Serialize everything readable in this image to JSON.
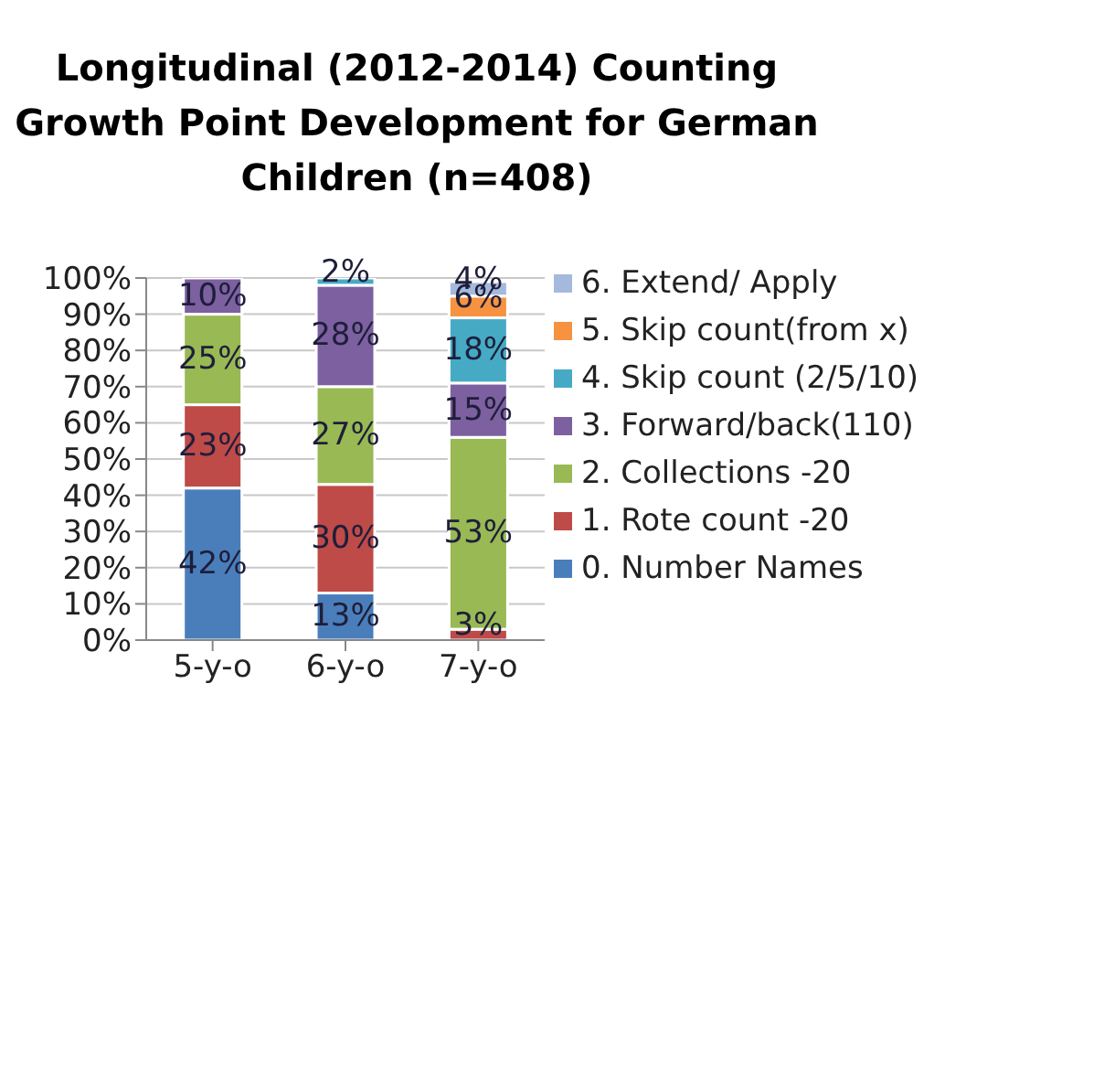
{
  "chart_data": {
    "type": "bar",
    "title": "Longitudinal (2012-2014) Counting Growth Point Development for German Children (n=408)",
    "categories": [
      "5-y-o",
      "6-y-o",
      "7-y-o"
    ],
    "stacked": true,
    "ylim": [
      0,
      100
    ],
    "yticks": [
      {
        "value": 0,
        "label": "0%"
      },
      {
        "value": 10,
        "label": "10%"
      },
      {
        "value": 20,
        "label": "20%"
      },
      {
        "value": 30,
        "label": "30%"
      },
      {
        "value": 40,
        "label": "40%"
      },
      {
        "value": 50,
        "label": "50%"
      },
      {
        "value": 60,
        "label": "60%"
      },
      {
        "value": 70,
        "label": "70%"
      },
      {
        "value": 80,
        "label": "80%"
      },
      {
        "value": 90,
        "label": "90%"
      },
      {
        "value": 100,
        "label": "100%"
      }
    ],
    "grid": "y",
    "legend": "right",
    "series": [
      {
        "name": "0. Number Names",
        "color": "#4a7ebb",
        "values": [
          42,
          13,
          null
        ],
        "value_labels": [
          "42%",
          "13%",
          null
        ]
      },
      {
        "name": "1. Rote count -20",
        "color": "#be4b48",
        "values": [
          23,
          30,
          3
        ],
        "value_labels": [
          "23%",
          "30%",
          "3%"
        ]
      },
      {
        "name": "2. Collections -20",
        "color": "#98b954",
        "values": [
          25,
          27,
          53
        ],
        "value_labels": [
          "25%",
          "27%",
          "53%"
        ]
      },
      {
        "name": "3. Forward/back(110)",
        "color": "#7d60a0",
        "values": [
          10,
          28,
          15
        ],
        "value_labels": [
          "10%",
          "28%",
          "15%"
        ]
      },
      {
        "name": "4. Skip count (2/5/10)",
        "color": "#46aac5",
        "values": [
          null,
          2,
          18
        ],
        "value_labels": [
          null,
          "2%",
          "18%"
        ]
      },
      {
        "name": "5. Skip count(from x)",
        "color": "#f69240",
        "values": [
          null,
          null,
          6
        ],
        "value_labels": [
          null,
          null,
          "6%"
        ]
      },
      {
        "name": "6. Extend/ Apply",
        "color": "#a5b9dc",
        "values": [
          null,
          null,
          4
        ],
        "value_labels": [
          null,
          null,
          "4%"
        ]
      }
    ]
  }
}
